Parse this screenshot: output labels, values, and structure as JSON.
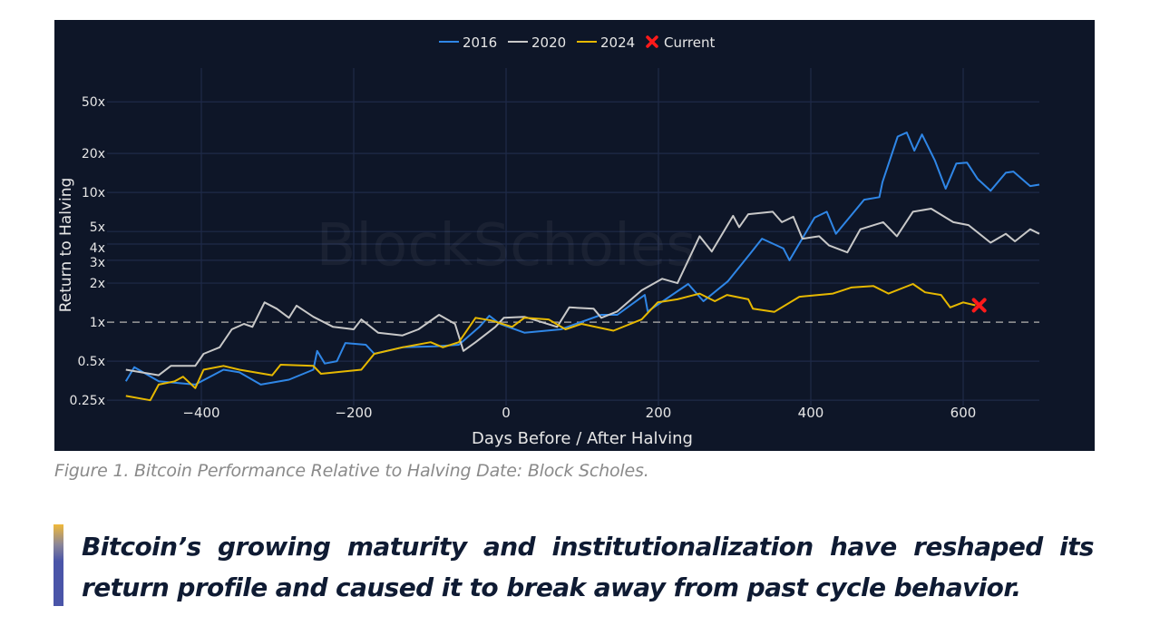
{
  "chart_data": {
    "type": "line",
    "title": "",
    "xlabel": "Days Before / After Halving",
    "ylabel": "Return to Halving",
    "y_scale": "log",
    "xlim": [
      -500,
      700
    ],
    "ylim": [
      0.235,
      66
    ],
    "x_ticks": [
      -400,
      -200,
      0,
      200,
      400,
      600
    ],
    "y_ticks": [
      0.25,
      0.5,
      1,
      2,
      3,
      4,
      5,
      10,
      20,
      50
    ],
    "y_tick_labels": [
      "0.25x",
      "0.5x",
      "1x",
      "2x",
      "3x",
      "4x",
      "5x",
      "10x",
      "20x",
      "50x"
    ],
    "x_tick_labels": [
      "−400",
      "−200",
      "0",
      "200",
      "400",
      "600"
    ],
    "grid": true,
    "reference_line": {
      "y": 1,
      "style": "dashed"
    },
    "legend_placement": "top-center",
    "watermark": "BlockScholes",
    "background": "#0e1628",
    "series": [
      {
        "name": "2016",
        "color": "#2f86e6",
        "x": [
          -499,
          -488,
          -456,
          -408,
          -371,
          -350,
          -322,
          -285,
          -253,
          -248,
          -238,
          -222,
          -211,
          -184,
          -173,
          -136,
          -93,
          -62,
          -35,
          -22,
          -8,
          24,
          72,
          125,
          146,
          182,
          186,
          239,
          259,
          291,
          320,
          336,
          364,
          372,
          405,
          421,
          433,
          470,
          490,
          494,
          514,
          526,
          536,
          546,
          563,
          577,
          591,
          605,
          619,
          636,
          656,
          666,
          688,
          700
        ],
        "y": [
          0.35,
          0.45,
          0.35,
          0.33,
          0.43,
          0.41,
          0.33,
          0.36,
          0.43,
          0.6,
          0.48,
          0.5,
          0.69,
          0.67,
          0.57,
          0.64,
          0.65,
          0.67,
          0.92,
          1.12,
          0.97,
          0.83,
          0.88,
          1.14,
          1.14,
          1.62,
          1.21,
          1.97,
          1.45,
          2.06,
          3.35,
          4.4,
          3.7,
          3.0,
          6.4,
          7.1,
          4.8,
          8.8,
          9.2,
          12,
          27,
          29,
          21,
          28,
          17.6,
          10.7,
          16.7,
          17,
          12.7,
          10.3,
          14.2,
          14.5,
          11.2,
          11.5
        ]
      },
      {
        "name": "2020",
        "color": "#c8c8c8",
        "x": [
          -499,
          -456,
          -440,
          -408,
          -397,
          -376,
          -360,
          -344,
          -333,
          -317,
          -301,
          -285,
          -275,
          -253,
          -227,
          -200,
          -190,
          -168,
          -136,
          -115,
          -88,
          -67,
          -56,
          -40,
          -14,
          -3,
          24,
          67,
          83,
          115,
          125,
          146,
          178,
          205,
          225,
          254,
          270,
          298,
          306,
          318,
          350,
          362,
          377,
          389,
          411,
          424,
          448,
          465,
          495,
          513,
          534,
          558,
          587,
          607,
          636,
          656,
          668,
          688,
          700
        ],
        "y": [
          0.43,
          0.39,
          0.46,
          0.46,
          0.57,
          0.64,
          0.88,
          0.97,
          0.92,
          1.42,
          1.27,
          1.08,
          1.34,
          1.1,
          0.92,
          0.88,
          1.05,
          0.83,
          0.79,
          0.88,
          1.14,
          0.97,
          0.6,
          0.7,
          0.92,
          1.08,
          1.1,
          0.92,
          1.3,
          1.27,
          1.08,
          1.21,
          1.76,
          2.16,
          2.0,
          4.6,
          3.5,
          6.6,
          5.4,
          6.8,
          7.1,
          5.9,
          6.5,
          4.4,
          4.6,
          3.9,
          3.45,
          5.2,
          5.9,
          4.6,
          7.1,
          7.5,
          5.9,
          5.6,
          4.1,
          4.8,
          4.2,
          5.2,
          4.8
        ]
      },
      {
        "name": "2024",
        "color": "#e6b800",
        "x": [
          -499,
          -467,
          -456,
          -435,
          -424,
          -408,
          -397,
          -371,
          -350,
          -307,
          -296,
          -253,
          -243,
          -190,
          -173,
          -136,
          -99,
          -83,
          -62,
          -40,
          -19,
          8,
          24,
          56,
          78,
          99,
          141,
          178,
          199,
          225,
          254,
          274,
          290,
          318,
          324,
          352,
          385,
          429,
          453,
          482,
          502,
          534,
          550,
          571,
          583,
          600,
          616
        ],
        "y": [
          0.27,
          0.25,
          0.33,
          0.35,
          0.38,
          0.31,
          0.43,
          0.46,
          0.43,
          0.39,
          0.47,
          0.46,
          0.4,
          0.43,
          0.57,
          0.64,
          0.7,
          0.64,
          0.7,
          1.08,
          1.03,
          0.92,
          1.08,
          1.05,
          0.88,
          0.97,
          0.86,
          1.05,
          1.42,
          1.5,
          1.66,
          1.45,
          1.62,
          1.5,
          1.27,
          1.2,
          1.57,
          1.66,
          1.85,
          1.9,
          1.66,
          1.97,
          1.7,
          1.62,
          1.3,
          1.42,
          1.35
        ]
      }
    ],
    "current_marker": {
      "name": "Current",
      "x": 621,
      "y": 1.35,
      "color": "#ff1a1a",
      "symbol": "x"
    }
  },
  "caption": "Figure 1. Bitcoin Performance Relative to Halving Date: Block Scholes.",
  "quote": "Bitcoin’s growing maturity and institutionalization have reshaped its return profile and caused it to break away from past cycle behavior.",
  "colors": {
    "grid": "#1e2a48",
    "text": "#e6e6e6",
    "quote_bar_top": "#f0b93a",
    "quote_bar_bottom": "#4a55a8"
  }
}
